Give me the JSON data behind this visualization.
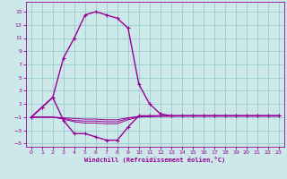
{
  "xlabel": "Windchill (Refroidissement éolien,°C)",
  "background_color": "#cce8e8",
  "grid_color": "#99cccc",
  "line_color": "#990099",
  "xlim": [
    -0.5,
    23.5
  ],
  "ylim": [
    -5.5,
    16.5
  ],
  "yticks": [
    -5,
    -3,
    -1,
    1,
    3,
    5,
    7,
    9,
    11,
    13,
    15
  ],
  "xticks": [
    0,
    1,
    2,
    3,
    4,
    5,
    6,
    7,
    8,
    9,
    10,
    11,
    12,
    13,
    14,
    15,
    16,
    17,
    18,
    19,
    20,
    21,
    22,
    23
  ],
  "main_x": [
    0,
    1,
    2,
    3,
    4,
    5,
    6,
    7,
    8,
    9,
    10,
    11,
    12,
    13,
    14,
    15,
    16,
    17,
    18,
    19,
    20,
    21,
    22,
    23
  ],
  "main_y": [
    -1.0,
    0.5,
    2.0,
    8.0,
    11.0,
    14.5,
    15.0,
    14.5,
    14.0,
    12.5,
    4.0,
    1.0,
    -0.5,
    -0.8,
    -0.8,
    -0.8,
    -0.8,
    -0.8,
    -0.8,
    -0.8,
    -0.8,
    -0.8,
    -0.8,
    -0.8
  ],
  "lower_x": [
    0,
    1,
    2,
    3,
    4,
    5,
    6,
    7,
    8,
    9,
    10,
    11,
    12,
    13,
    14,
    15,
    16,
    17,
    18,
    19,
    20,
    21,
    22,
    23
  ],
  "lower_y": [
    -1.0,
    0.5,
    2.0,
    -1.5,
    -3.5,
    -3.5,
    -4.0,
    -4.5,
    -4.5,
    -2.5,
    -0.8,
    -0.8,
    -0.8,
    -0.8,
    -0.8,
    -0.8,
    -0.8,
    -0.8,
    -0.8,
    -0.8,
    -0.8,
    -0.8,
    -0.8,
    -0.8
  ],
  "flat1_x": [
    0,
    1,
    2,
    3,
    4,
    5,
    6,
    7,
    8,
    9,
    10,
    11,
    12,
    13,
    14,
    15,
    16,
    17,
    18,
    19,
    20,
    21,
    22,
    23
  ],
  "flat1_y": [
    -1.0,
    -1.0,
    -1.0,
    -1.1,
    -1.2,
    -1.3,
    -1.3,
    -1.4,
    -1.4,
    -1.1,
    -0.9,
    -0.9,
    -0.85,
    -0.85,
    -0.85,
    -0.85,
    -0.85,
    -0.85,
    -0.85,
    -0.85,
    -0.85,
    -0.85,
    -0.85,
    -0.85
  ],
  "flat2_x": [
    0,
    1,
    2,
    3,
    4,
    5,
    6,
    7,
    8,
    9,
    10,
    11,
    12,
    13,
    14,
    15,
    16,
    17,
    18,
    19,
    20,
    21,
    22,
    23
  ],
  "flat2_y": [
    -1.0,
    -1.0,
    -1.0,
    -1.2,
    -1.5,
    -1.6,
    -1.6,
    -1.7,
    -1.7,
    -1.2,
    -0.9,
    -0.85,
    -0.8,
    -0.8,
    -0.8,
    -0.8,
    -0.8,
    -0.8,
    -0.8,
    -0.8,
    -0.8,
    -0.8,
    -0.8,
    -0.8
  ],
  "flat3_x": [
    0,
    1,
    2,
    3,
    4,
    5,
    6,
    7,
    8,
    9,
    10,
    11,
    12,
    13,
    14,
    15,
    16,
    17,
    18,
    19,
    20,
    21,
    22,
    23
  ],
  "flat3_y": [
    -1.0,
    -1.0,
    -1.0,
    -1.3,
    -1.7,
    -1.9,
    -1.9,
    -2.0,
    -2.0,
    -1.4,
    -1.0,
    -0.9,
    -0.85,
    -0.85,
    -0.8,
    -0.8,
    -0.8,
    -0.8,
    -0.8,
    -0.8,
    -0.8,
    -0.8,
    -0.8,
    -0.8
  ]
}
